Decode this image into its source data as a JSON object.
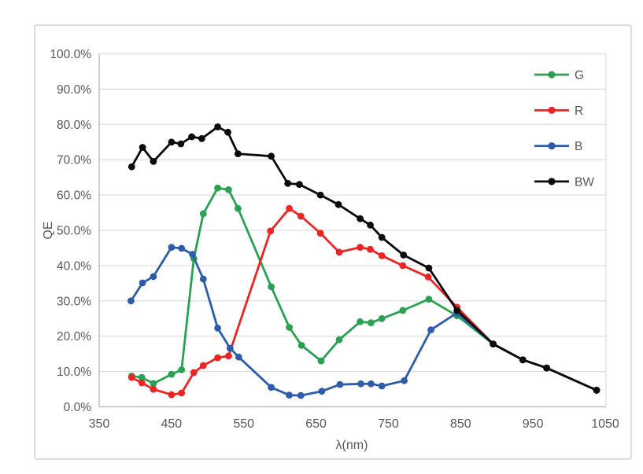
{
  "chart_data": {
    "type": "line",
    "title": "",
    "xlabel": "λ(nm)",
    "ylabel": "QE",
    "xlim": [
      350,
      1050
    ],
    "ylim_percent": [
      0,
      100
    ],
    "grid": "horizontal",
    "legend_position": "inside-top-right",
    "x_ticks": [
      350,
      450,
      550,
      650,
      750,
      850,
      950,
      1050
    ],
    "y_ticks": [
      {
        "value": 0,
        "label": "0.0%"
      },
      {
        "value": 10,
        "label": "10.0%"
      },
      {
        "value": 20,
        "label": "20.0%"
      },
      {
        "value": 30,
        "label": "30.0%"
      },
      {
        "value": 40,
        "label": "40.0%"
      },
      {
        "value": 50,
        "label": "50.0%"
      },
      {
        "value": 60,
        "label": "60.0%"
      },
      {
        "value": 70,
        "label": "70.0%"
      },
      {
        "value": 80,
        "label": "80.0%"
      },
      {
        "value": 90,
        "label": "90.0%"
      },
      {
        "value": 100,
        "label": "100.0%"
      }
    ],
    "colors": {
      "grid": "#d9d9d9",
      "axis": "#bfbfbf",
      "tick_text": "#595959",
      "frame": "#d9dce1"
    },
    "series": [
      {
        "name": "G",
        "color": "#2aa152",
        "points": [
          [
            395,
            8.7
          ],
          [
            409,
            8.3
          ],
          [
            425,
            6.6
          ],
          [
            450,
            9.2
          ],
          [
            464,
            10.5
          ],
          [
            481,
            42.0
          ],
          [
            494,
            54.7
          ],
          [
            514,
            62.0
          ],
          [
            529,
            61.5
          ],
          [
            542,
            56.2
          ],
          [
            588,
            34.0
          ],
          [
            613,
            22.5
          ],
          [
            630,
            17.4
          ],
          [
            657,
            13.0
          ],
          [
            682,
            19.0
          ],
          [
            711,
            24.1
          ],
          [
            726,
            23.8
          ],
          [
            741,
            25.0
          ],
          [
            770,
            27.3
          ],
          [
            806,
            30.5
          ],
          [
            845,
            25.8
          ],
          [
            895,
            17.8
          ],
          [
            936,
            13.3
          ],
          [
            969,
            11.0
          ],
          [
            1038,
            4.7
          ]
        ]
      },
      {
        "name": "R",
        "color": "#ec2424",
        "points": [
          [
            395,
            8.3
          ],
          [
            409,
            6.8
          ],
          [
            425,
            5.0
          ],
          [
            450,
            3.4
          ],
          [
            464,
            3.9
          ],
          [
            481,
            9.7
          ],
          [
            494,
            11.7
          ],
          [
            514,
            13.9
          ],
          [
            529,
            14.4
          ],
          [
            587,
            49.8
          ],
          [
            613,
            56.2
          ],
          [
            629,
            54.0
          ],
          [
            656,
            49.2
          ],
          [
            682,
            43.8
          ],
          [
            711,
            45.2
          ],
          [
            725,
            44.6
          ],
          [
            741,
            42.8
          ],
          [
            770,
            40.0
          ],
          [
            805,
            36.8
          ],
          [
            845,
            28.2
          ],
          [
            895,
            17.8
          ],
          [
            936,
            13.3
          ],
          [
            969,
            11.0
          ],
          [
            1038,
            4.7
          ]
        ]
      },
      {
        "name": "B",
        "color": "#2d5cab",
        "points": [
          [
            394,
            30.0
          ],
          [
            410,
            35.1
          ],
          [
            425,
            36.9
          ],
          [
            450,
            45.2
          ],
          [
            464,
            44.9
          ],
          [
            479,
            43.2
          ],
          [
            494,
            36.2
          ],
          [
            514,
            22.3
          ],
          [
            531,
            16.6
          ],
          [
            543,
            14.1
          ],
          [
            588,
            5.5
          ],
          [
            613,
            3.3
          ],
          [
            629,
            3.2
          ],
          [
            658,
            4.4
          ],
          [
            683,
            6.3
          ],
          [
            712,
            6.5
          ],
          [
            726,
            6.5
          ],
          [
            741,
            5.9
          ],
          [
            772,
            7.4
          ],
          [
            809,
            21.8
          ],
          [
            845,
            26.6
          ],
          [
            895,
            17.8
          ],
          [
            936,
            13.3
          ],
          [
            969,
            11.0
          ],
          [
            1038,
            4.7
          ]
        ]
      },
      {
        "name": "BW",
        "color": "#0a0a0a",
        "points": [
          [
            395,
            68.0
          ],
          [
            410,
            73.5
          ],
          [
            425,
            69.5
          ],
          [
            450,
            75.0
          ],
          [
            463,
            74.5
          ],
          [
            478,
            76.5
          ],
          [
            492,
            76.0
          ],
          [
            514,
            79.3
          ],
          [
            528,
            77.8
          ],
          [
            542,
            71.7
          ],
          [
            588,
            71.0
          ],
          [
            611,
            63.3
          ],
          [
            627,
            63.0
          ],
          [
            656,
            60.0
          ],
          [
            681,
            57.3
          ],
          [
            711,
            53.3
          ],
          [
            725,
            51.5
          ],
          [
            741,
            48.0
          ],
          [
            771,
            43.0
          ],
          [
            806,
            39.3
          ],
          [
            845,
            27.3
          ],
          [
            895,
            17.8
          ],
          [
            936,
            13.3
          ],
          [
            969,
            11.0
          ],
          [
            1038,
            4.7
          ]
        ]
      }
    ]
  }
}
